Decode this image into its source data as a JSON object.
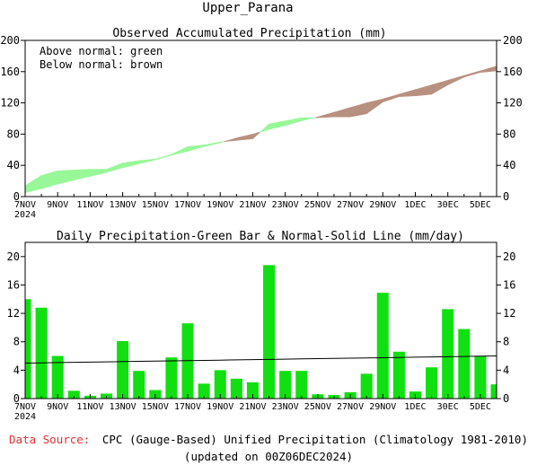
{
  "title": "Upper_Parana",
  "footer": {
    "source_label": "Data Source:",
    "source_text": "CPC (Gauge-Based) Unified Precipitation (Climatology 1981-2010)",
    "updated": "(updated on 00Z06DEC2024)"
  },
  "colors": {
    "above_normal": "#98f898",
    "below_normal": "#b89080",
    "daily_bar": "#10e010",
    "normal_line": "#000000"
  },
  "x_tick_labels": [
    "7NOV",
    "9NOV",
    "11NOV",
    "13NOV",
    "15NOV",
    "17NOV",
    "19NOV",
    "21NOV",
    "23NOV",
    "25NOV",
    "27NOV",
    "29NOV",
    "1DEC",
    "30EC",
    "5DEC"
  ],
  "x_tick_year": "2024",
  "chart_data": [
    {
      "type": "area",
      "title": "Observed Accumulated Precipitation (mm)",
      "legend_notes": [
        "Above normal: green",
        "Below normal: brown"
      ],
      "ylim": [
        0,
        200
      ],
      "yticks": [
        0,
        40,
        80,
        120,
        160,
        200
      ],
      "x": [
        "7NOV",
        "8NOV",
        "9NOV",
        "10NOV",
        "11NOV",
        "12NOV",
        "13NOV",
        "14NOV",
        "15NOV",
        "16NOV",
        "17NOV",
        "18NOV",
        "19NOV",
        "20NOV",
        "21NOV",
        "22NOV",
        "23NOV",
        "24NOV",
        "25NOV",
        "26NOV",
        "27NOV",
        "28NOV",
        "29NOV",
        "30NOV",
        "1DEC",
        "2DEC",
        "3DEC",
        "4DEC",
        "5DEC",
        "6DEC"
      ],
      "series": [
        {
          "name": "Observed",
          "values": [
            14,
            27,
            33,
            34,
            35,
            35,
            43,
            46,
            48,
            54,
            64,
            66,
            70,
            72,
            74,
            93,
            97,
            101,
            101,
            102,
            102,
            106,
            121,
            128,
            129,
            131,
            143,
            153,
            159,
            161
          ]
        },
        {
          "name": "Normal",
          "values": [
            5,
            10,
            16,
            21,
            26,
            31,
            37,
            42,
            47,
            53,
            58,
            64,
            69,
            75,
            80,
            86,
            91,
            97,
            102,
            108,
            114,
            120,
            125,
            131,
            137,
            143,
            149,
            155,
            161,
            167
          ]
        }
      ]
    },
    {
      "type": "bar",
      "title": "Daily Precipitation-Green Bar & Normal-Solid Line (mm/day)",
      "ylim": [
        0,
        22
      ],
      "yticks": [
        0,
        4,
        8,
        12,
        16,
        20
      ],
      "x": [
        "7NOV",
        "8NOV",
        "9NOV",
        "10NOV",
        "11NOV",
        "12NOV",
        "13NOV",
        "14NOV",
        "15NOV",
        "16NOV",
        "17NOV",
        "18NOV",
        "19NOV",
        "20NOV",
        "21NOV",
        "22NOV",
        "23NOV",
        "24NOV",
        "25NOV",
        "26NOV",
        "27NOV",
        "28NOV",
        "29NOV",
        "30NOV",
        "1DEC",
        "2DEC",
        "3DEC",
        "4DEC",
        "5DEC",
        "6DEC"
      ],
      "series": [
        {
          "name": "Daily Precipitation",
          "values": [
            14.0,
            12.8,
            6.0,
            1.1,
            0.4,
            0.7,
            8.1,
            3.9,
            1.2,
            5.8,
            10.6,
            2.1,
            4.0,
            2.8,
            2.3,
            18.8,
            3.9,
            3.9,
            0.6,
            0.5,
            0.9,
            3.5,
            14.9,
            6.6,
            1.0,
            4.4,
            12.6,
            9.8,
            6.0,
            2.0
          ]
        },
        {
          "name": "Normal",
          "values": [
            5.0,
            5.03,
            5.07,
            5.1,
            5.14,
            5.17,
            5.21,
            5.24,
            5.28,
            5.31,
            5.34,
            5.38,
            5.41,
            5.45,
            5.48,
            5.52,
            5.55,
            5.59,
            5.62,
            5.66,
            5.69,
            5.72,
            5.76,
            5.79,
            5.83,
            5.86,
            5.9,
            5.93,
            5.97,
            6.0
          ]
        }
      ]
    }
  ]
}
